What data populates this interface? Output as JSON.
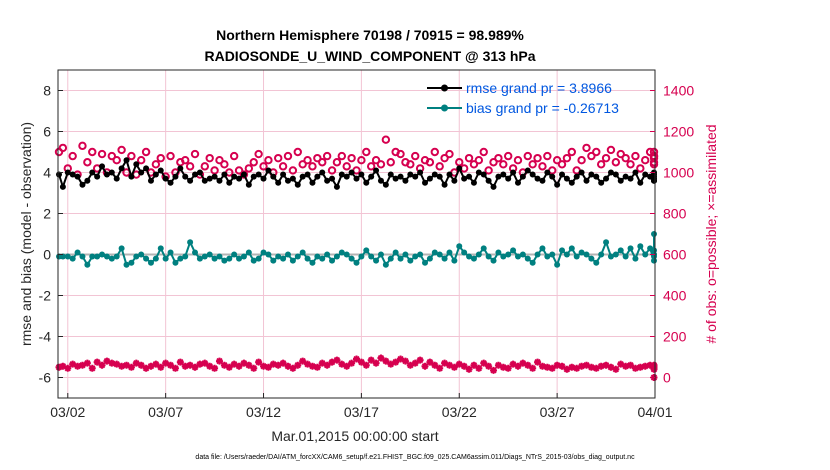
{
  "chart_data": {
    "type": "line",
    "title_line1": "Northern Hemisphere 70198 / 70915 = 98.989%",
    "title_line2": "RADIOSONDE_U_WIND_COMPONENT @ 313 hPa",
    "xlabel": "Mar.01,2015 00:00:00 start",
    "ylabel_left": "rmse and bias (model - observation)",
    "ylabel_right": "# of obs: o=possible; ×=assimilated",
    "footer": "data file: /Users/raeder/DAI/ATM_forcXX/CAM6_setup/f.e21.FHIST_BGC.f09_025.CAM6assim.011/Diags_NTrS_2015-03/obs_diag_output.nc",
    "x_ticks": [
      "03/02",
      "03/07",
      "03/12",
      "03/17",
      "03/22",
      "03/27",
      "04/01"
    ],
    "xlim_days": [
      0.5,
      31.0
    ],
    "x_tick_days": [
      1,
      6,
      11,
      16,
      21,
      26,
      31
    ],
    "left_axis": {
      "ylim": [
        -7,
        9
      ],
      "ticks": [
        "-6",
        "-4",
        "-2",
        "0",
        "2",
        "4",
        "6",
        "8"
      ],
      "tick_values": [
        -6,
        -4,
        -2,
        0,
        2,
        4,
        6,
        8
      ]
    },
    "right_axis": {
      "ylim": [
        -100,
        1500
      ],
      "ticks": [
        "0",
        "200",
        "400",
        "600",
        "800",
        "1000",
        "1200",
        "1400"
      ],
      "tick_values": [
        0,
        200,
        400,
        600,
        800,
        1000,
        1200,
        1400
      ]
    },
    "colors": {
      "rmse": "#000000",
      "bias": "#008080",
      "obs": "#d6004f",
      "zero_line": "#b4b4b4",
      "grid": "#f2c4d4",
      "legend_text": "#0057e0"
    },
    "series": [
      {
        "name": "rmse",
        "legend": "rmse grand pr = 3.8966",
        "x_start_day": 0.5,
        "dx_day": 0.25,
        "values": [
          3.9,
          3.3,
          4.0,
          3.9,
          3.8,
          3.4,
          3.6,
          4.0,
          3.8,
          4.3,
          3.9,
          4.0,
          3.7,
          4.2,
          4.6,
          3.8,
          4.4,
          4.0,
          4.2,
          3.6,
          3.9,
          4.1,
          3.7,
          3.5,
          3.8,
          4.2,
          3.8,
          3.6,
          3.9,
          4.0,
          3.6,
          3.7,
          3.8,
          3.6,
          3.9,
          3.5,
          3.8,
          3.7,
          3.9,
          3.4,
          3.8,
          3.9,
          3.7,
          4.1,
          3.8,
          3.5,
          3.9,
          3.6,
          3.7,
          3.4,
          3.8,
          3.9,
          3.5,
          3.8,
          4.0,
          3.6,
          3.7,
          3.3,
          3.9,
          3.8,
          4.0,
          3.7,
          3.9,
          3.5,
          3.8,
          4.1,
          3.6,
          3.4,
          3.9,
          3.7,
          3.8,
          3.6,
          3.9,
          3.8,
          4.0,
          3.5,
          3.7,
          3.9,
          3.8,
          3.4,
          3.9,
          3.6,
          4.2,
          3.7,
          3.8,
          3.5,
          4.0,
          3.9,
          3.6,
          3.3,
          3.8,
          3.9,
          3.7,
          4.0,
          3.5,
          3.8,
          4.1,
          3.9,
          3.7,
          3.6,
          4.0,
          3.8,
          3.4,
          3.9,
          3.7,
          3.5,
          3.8,
          4.0,
          3.6,
          3.9,
          3.8,
          3.5,
          3.7,
          4.0,
          3.9,
          3.6,
          3.8,
          3.7,
          4.0,
          3.5,
          3.9,
          3.8,
          3.6,
          4.0,
          3.7,
          3.9,
          3.8,
          3.6
        ]
      },
      {
        "name": "bias",
        "legend": "bias grand pr = -0.26713",
        "x_start_day": 0.5,
        "dx_day": 0.25,
        "values": [
          -0.1,
          -0.1,
          -0.1,
          -0.2,
          0.1,
          -0.1,
          -0.5,
          -0.1,
          -0.1,
          0.0,
          -0.1,
          -0.2,
          -0.1,
          0.3,
          -0.5,
          -0.4,
          -0.1,
          0.0,
          -0.2,
          -0.4,
          -0.2,
          0.3,
          -0.2,
          0.1,
          -0.4,
          -0.2,
          -0.1,
          0.6,
          0.1,
          -0.2,
          -0.1,
          0.0,
          -0.2,
          -0.1,
          -0.3,
          -0.2,
          0.0,
          -0.2,
          -0.1,
          0.1,
          -0.3,
          -0.2,
          0.1,
          0.0,
          -0.3,
          -0.1,
          -0.2,
          0.0,
          -0.3,
          -0.1,
          0.1,
          -0.2,
          -0.4,
          -0.1,
          -0.2,
          0.0,
          -0.3,
          -0.1,
          0.1,
          0.0,
          -0.2,
          -0.4,
          -0.1,
          0.2,
          -0.1,
          -0.3,
          0.0,
          -0.5,
          -0.2,
          0.1,
          -0.2,
          0.0,
          -0.3,
          -0.1,
          0.0,
          -0.4,
          -0.2,
          0.1,
          0.0,
          -0.2,
          0.1,
          -0.3,
          0.4,
          0.1,
          -0.1,
          -0.2,
          0.0,
          0.3,
          -0.1,
          -0.3,
          0.1,
          -0.1,
          0.0,
          0.2,
          -0.1,
          0.0,
          -0.2,
          -0.4,
          0.0,
          0.3,
          -0.1,
          0.0,
          -0.5,
          0.2,
          0.0,
          0.3,
          -0.1,
          0.1,
          0.0,
          -0.2,
          -0.4,
          0.0,
          0.6,
          -0.1,
          0.0,
          0.2,
          -0.1,
          0.3,
          -0.2,
          0.4,
          0.0,
          0.3,
          -0.3,
          0.0,
          0.2,
          -0.1,
          0.0,
          1.0
        ]
      },
      {
        "name": "obs_possible",
        "x_start_day": 0.5,
        "dx_day": 0.25,
        "values": [
          1100,
          1120,
          1020,
          1080,
          990,
          1130,
          1050,
          1100,
          1020,
          1090,
          1000,
          1080,
          1060,
          1110,
          1000,
          1080,
          990,
          1060,
          1100,
          1000,
          1040,
          1070,
          980,
          1080,
          1000,
          1050,
          1060,
          1030,
          1090,
          990,
          1030,
          1070,
          1010,
          1060,
          1040,
          1000,
          1080,
          1010,
          990,
          1020,
          1050,
          1090,
          1030,
          1060,
          1000,
          1070,
          1030,
          1080,
          1010,
          1100,
          1040,
          1060,
          1030,
          1070,
          1050,
          1080,
          1010,
          1050,
          1080,
          1030,
          1070,
          1010,
          1060,
          1100,
          1030,
          1060,
          1040,
          1160,
          1050,
          1100,
          1090,
          1050,
          1040,
          1080,
          1020,
          1060,
          1050,
          1100,
          1030,
          1070,
          1090,
          1000,
          1050,
          1020,
          1070,
          1040,
          1060,
          1100,
          1010,
          1050,
          1070,
          1040,
          1080,
          1020,
          1060,
          1000,
          1080,
          1040,
          1070,
          1030,
          1080,
          1010,
          1060,
          1040,
          1070,
          1100,
          1010,
          1060,
          1120,
          1080,
          1100,
          1040,
          1070,
          1110,
          1050,
          1090,
          1070,
          1040,
          1080,
          1020,
          1060,
          1100,
          1050,
          1080,
          1040,
          1070,
          1100,
          1080
        ]
      },
      {
        "name": "obs_assimilated",
        "x_start_day": 0.5,
        "dx_day": 0.25,
        "values": [
          50,
          55,
          45,
          65,
          55,
          60,
          70,
          45,
          75,
          60,
          80,
          70,
          65,
          55,
          60,
          50,
          70,
          60,
          45,
          55,
          65,
          50,
          70,
          60,
          45,
          75,
          55,
          60,
          50,
          65,
          70,
          55,
          45,
          80,
          60,
          50,
          65,
          55,
          70,
          60,
          45,
          75,
          55,
          50,
          65,
          60,
          70,
          55,
          45,
          60,
          80,
          65,
          55,
          50,
          70,
          60,
          75,
          85,
          65,
          55,
          70,
          90,
          75,
          60,
          85,
          70,
          95,
          80,
          65,
          75,
          90,
          80,
          60,
          70,
          85,
          55,
          75,
          60,
          45,
          70,
          60,
          50,
          65,
          55,
          40,
          60,
          45,
          70,
          55,
          35,
          60,
          50,
          45,
          65,
          55,
          70,
          60,
          45,
          75,
          55,
          50,
          45,
          60,
          55,
          40,
          50,
          45,
          55,
          60,
          50,
          45,
          55,
          60,
          50,
          40,
          65,
          55,
          60,
          45,
          50,
          55,
          60,
          45,
          50,
          55,
          40,
          60,
          0
        ]
      }
    ]
  }
}
